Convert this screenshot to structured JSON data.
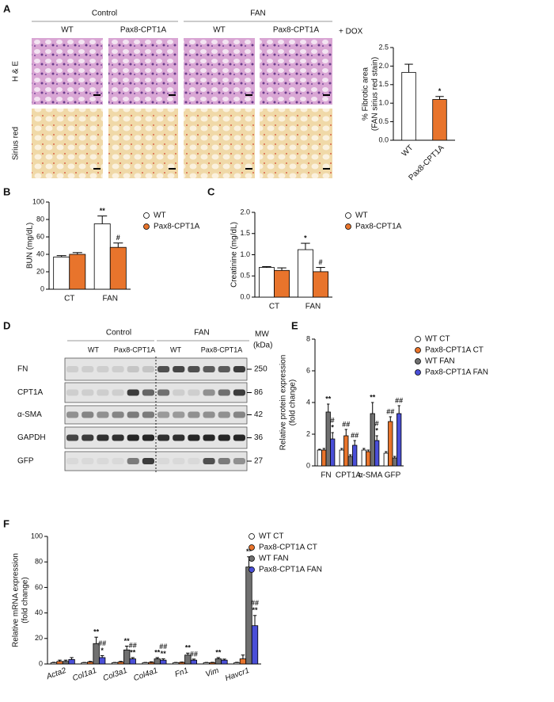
{
  "panel_a": {
    "label": "A",
    "groups": [
      "Control",
      "FAN"
    ],
    "genotypes": [
      "WT",
      "Pax8-CPT1A",
      "WT",
      "Pax8-CPT1A"
    ],
    "treatment": "+ DOX",
    "stains": [
      "H & E",
      "Sirius red"
    ]
  },
  "panel_d": {
    "label": "D",
    "groups": [
      "Control",
      "FAN"
    ],
    "genotypes": [
      "WT",
      "Pax8-CPT1A",
      "WT",
      "Pax8-CPT1A"
    ],
    "mw_title": [
      "MW",
      "(kDa)"
    ],
    "rows": [
      {
        "name": "FN",
        "mw": 250
      },
      {
        "name": "CPT1A",
        "mw": 86
      },
      {
        "name": "α-SMA",
        "mw": 42
      },
      {
        "name": "GAPDH",
        "mw": 36
      },
      {
        "name": "GFP",
        "mw": 27
      }
    ]
  },
  "chart_data": [
    {
      "type": "bar",
      "ylabel": [
        "% Fibrotic area",
        "(FAN sirius red stain)"
      ],
      "categories": [
        "WT",
        "Pax8-CPT1A"
      ],
      "values": [
        1.83,
        1.1
      ],
      "errors": [
        0.22,
        0.08
      ],
      "colors": [
        "#ffffff",
        "#e8742c"
      ],
      "annotations": [
        null,
        [
          "*"
        ]
      ],
      "x_label_rotation": 45,
      "ylim": [
        0,
        2.5
      ],
      "yticks": [
        {
          "value": 0,
          "label": "0.0"
        },
        {
          "value": 0.5,
          "label": "0.5"
        },
        {
          "value": 1,
          "label": "1.0"
        },
        {
          "value": 1.5,
          "label": "1.5"
        },
        {
          "value": 2,
          "label": "2.0"
        },
        {
          "value": 2.5,
          "label": "2.5"
        }
      ]
    },
    {
      "type": "bar",
      "panel": "B",
      "ylabel": [
        "BUN (mg/dL)"
      ],
      "categories": [
        "CT",
        "FAN"
      ],
      "series": [
        {
          "name": "WT",
          "color": "#ffffff",
          "values": [
            37,
            75
          ],
          "errors": [
            1.5,
            9
          ],
          "annotations": [
            null,
            [
              "**"
            ]
          ]
        },
        {
          "name": "Pax8-CPT1A",
          "color": "#e8742c",
          "values": [
            40,
            48
          ],
          "errors": [
            2,
            5
          ],
          "annotations": [
            null,
            [
              "#"
            ]
          ]
        }
      ],
      "ylim": [
        0,
        100
      ],
      "yticks": [
        0,
        20,
        40,
        60,
        80,
        100
      ]
    },
    {
      "type": "bar",
      "panel": "C",
      "ylabel": [
        "Creatinine (mg/dL)"
      ],
      "categories": [
        "CT",
        "FAN"
      ],
      "series": [
        {
          "name": "WT",
          "color": "#ffffff",
          "values": [
            0.7,
            1.12
          ],
          "errors": [
            0.02,
            0.15
          ],
          "annotations": [
            null,
            [
              "*"
            ]
          ]
        },
        {
          "name": "Pax8-CPT1A",
          "color": "#e8742c",
          "values": [
            0.63,
            0.6
          ],
          "errors": [
            0.06,
            0.1
          ],
          "annotations": [
            null,
            [
              "#"
            ]
          ]
        }
      ],
      "ylim": [
        0,
        2
      ],
      "yticks": [
        {
          "value": 0,
          "label": "0.0"
        },
        {
          "value": 0.5,
          "label": "0.5"
        },
        {
          "value": 1,
          "label": "1.0"
        },
        {
          "value": 1.5,
          "label": "1.5"
        },
        {
          "value": 2,
          "label": "2.0"
        }
      ]
    },
    {
      "type": "bar",
      "panel": "E",
      "ylabel": [
        "Relative protein expression",
        "(fold change)"
      ],
      "categories": [
        "FN",
        "CPT1A",
        "α-SMA",
        "GFP"
      ],
      "series": [
        {
          "name": "WT CT",
          "color": "#ffffff",
          "values": [
            1.0,
            1.0,
            1.0,
            0.8
          ],
          "errors": [
            0.05,
            0.1,
            0.1,
            0.1
          ],
          "annotations": [
            null,
            null,
            null,
            null
          ]
        },
        {
          "name": "Pax8-CPT1A CT",
          "color": "#e8742c",
          "values": [
            1.0,
            1.9,
            0.9,
            2.8
          ],
          "errors": [
            0.1,
            0.4,
            0.1,
            0.3
          ],
          "annotations": [
            null,
            [
              "##"
            ],
            null,
            [
              "##"
            ]
          ]
        },
        {
          "name": "WT FAN",
          "color": "#707070",
          "values": [
            3.4,
            0.6,
            3.3,
            0.5
          ],
          "errors": [
            0.5,
            0.1,
            0.7,
            0.1
          ],
          "annotations": [
            [
              "**"
            ],
            null,
            [
              "**"
            ],
            null
          ]
        },
        {
          "name": "Pax8-CPT1A FAN",
          "color": "#4a4fd8",
          "values": [
            1.7,
            1.3,
            1.6,
            3.3
          ],
          "errors": [
            0.4,
            0.3,
            0.3,
            0.5
          ],
          "annotations": [
            [
              "#",
              "*"
            ],
            [
              "##"
            ],
            [
              "#",
              "*"
            ],
            [
              "##"
            ]
          ]
        }
      ],
      "ylim": [
        0,
        8
      ],
      "yticks": [
        0,
        2,
        4,
        6,
        8
      ]
    },
    {
      "type": "bar",
      "panel": "F",
      "ylabel": [
        "Relative mRNA expression",
        "(fold change)"
      ],
      "categories": [
        "Acta2",
        "Col1a1",
        "Col3a1",
        "Col4a1",
        "Fn1",
        "Vim",
        "Havcr1"
      ],
      "category_style": "italic",
      "x_label_rotation": 20,
      "series": [
        {
          "name": "WT CT",
          "color": "#ffffff",
          "values": [
            1,
            1,
            1,
            1,
            1,
            1,
            1
          ],
          "errors": [
            0.3,
            0.2,
            0.2,
            0.2,
            0.2,
            0.2,
            0.3
          ],
          "annotations": [
            null,
            null,
            null,
            null,
            null,
            null,
            null
          ]
        },
        {
          "name": "Pax8-CPT1A CT",
          "color": "#e8742c",
          "values": [
            2,
            1.5,
            1.5,
            1.2,
            1.2,
            1,
            4
          ],
          "errors": [
            1,
            0.5,
            0.5,
            0.5,
            0.3,
            0.3,
            3
          ],
          "annotations": [
            null,
            null,
            null,
            null,
            null,
            null,
            null
          ]
        },
        {
          "name": "WT FAN",
          "color": "#707070",
          "values": [
            2,
            16,
            11,
            4,
            7,
            4,
            76
          ],
          "errors": [
            1,
            5,
            3,
            1,
            1.5,
            1,
            8
          ],
          "annotations": [
            null,
            [
              "**"
            ],
            [
              "**"
            ],
            [
              "**"
            ],
            [
              "**"
            ],
            [
              "**"
            ],
            [
              "**"
            ]
          ]
        },
        {
          "name": "Pax8-CPT1A FAN",
          "color": "#4a4fd8",
          "values": [
            3.5,
            5,
            4,
            3,
            3,
            3,
            30
          ],
          "errors": [
            1.5,
            1.5,
            1,
            1,
            0.8,
            0.8,
            8
          ],
          "annotations": [
            null,
            [
              "##",
              "*"
            ],
            [
              "##",
              "**"
            ],
            [
              "##",
              "**"
            ],
            [
              "##"
            ],
            null,
            [
              "##",
              "**"
            ]
          ]
        }
      ],
      "ylim": [
        0,
        100
      ],
      "yticks": [
        0,
        20,
        40,
        60,
        80,
        100
      ]
    }
  ]
}
